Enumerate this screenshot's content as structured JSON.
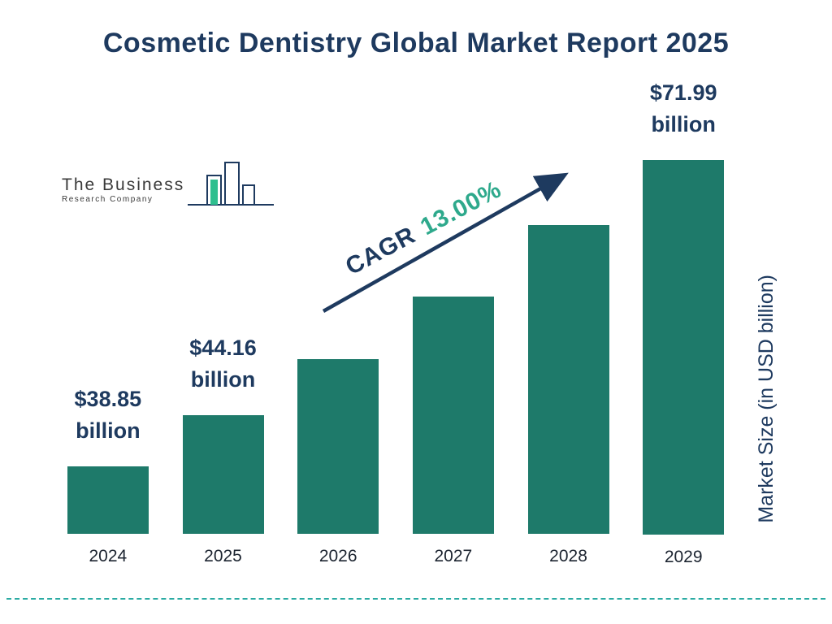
{
  "title": "Cosmetic Dentistry Global Market Report 2025",
  "logo": {
    "line1": "The Business",
    "line2": "Research Company"
  },
  "cagr": {
    "label": "CAGR",
    "value": "13.00%"
  },
  "colors": {
    "bar": "#1e7a6a",
    "navy_text": "#1e3a5f",
    "cagr_green": "#2ea98c",
    "divider_teal": "#2baba3",
    "logo_green": "#2fbf8f"
  },
  "chart_data": {
    "type": "bar",
    "title": "Cosmetic Dentistry Global Market Report 2025",
    "categories": [
      "2024",
      "2025",
      "2026",
      "2027",
      "2028",
      "2029"
    ],
    "values": [
      38.85,
      44.16,
      49.9,
      56.39,
      63.72,
      71.99
    ],
    "value_labels": [
      "$38.85 billion",
      "$44.16 billion",
      "",
      "",
      "",
      "$71.99 billion"
    ],
    "xlabel": "",
    "ylabel": "Market Size (in USD billion)",
    "ylim": [
      0,
      80
    ],
    "grid": false,
    "legend": "none",
    "annotation": "CAGR 13.00%"
  }
}
